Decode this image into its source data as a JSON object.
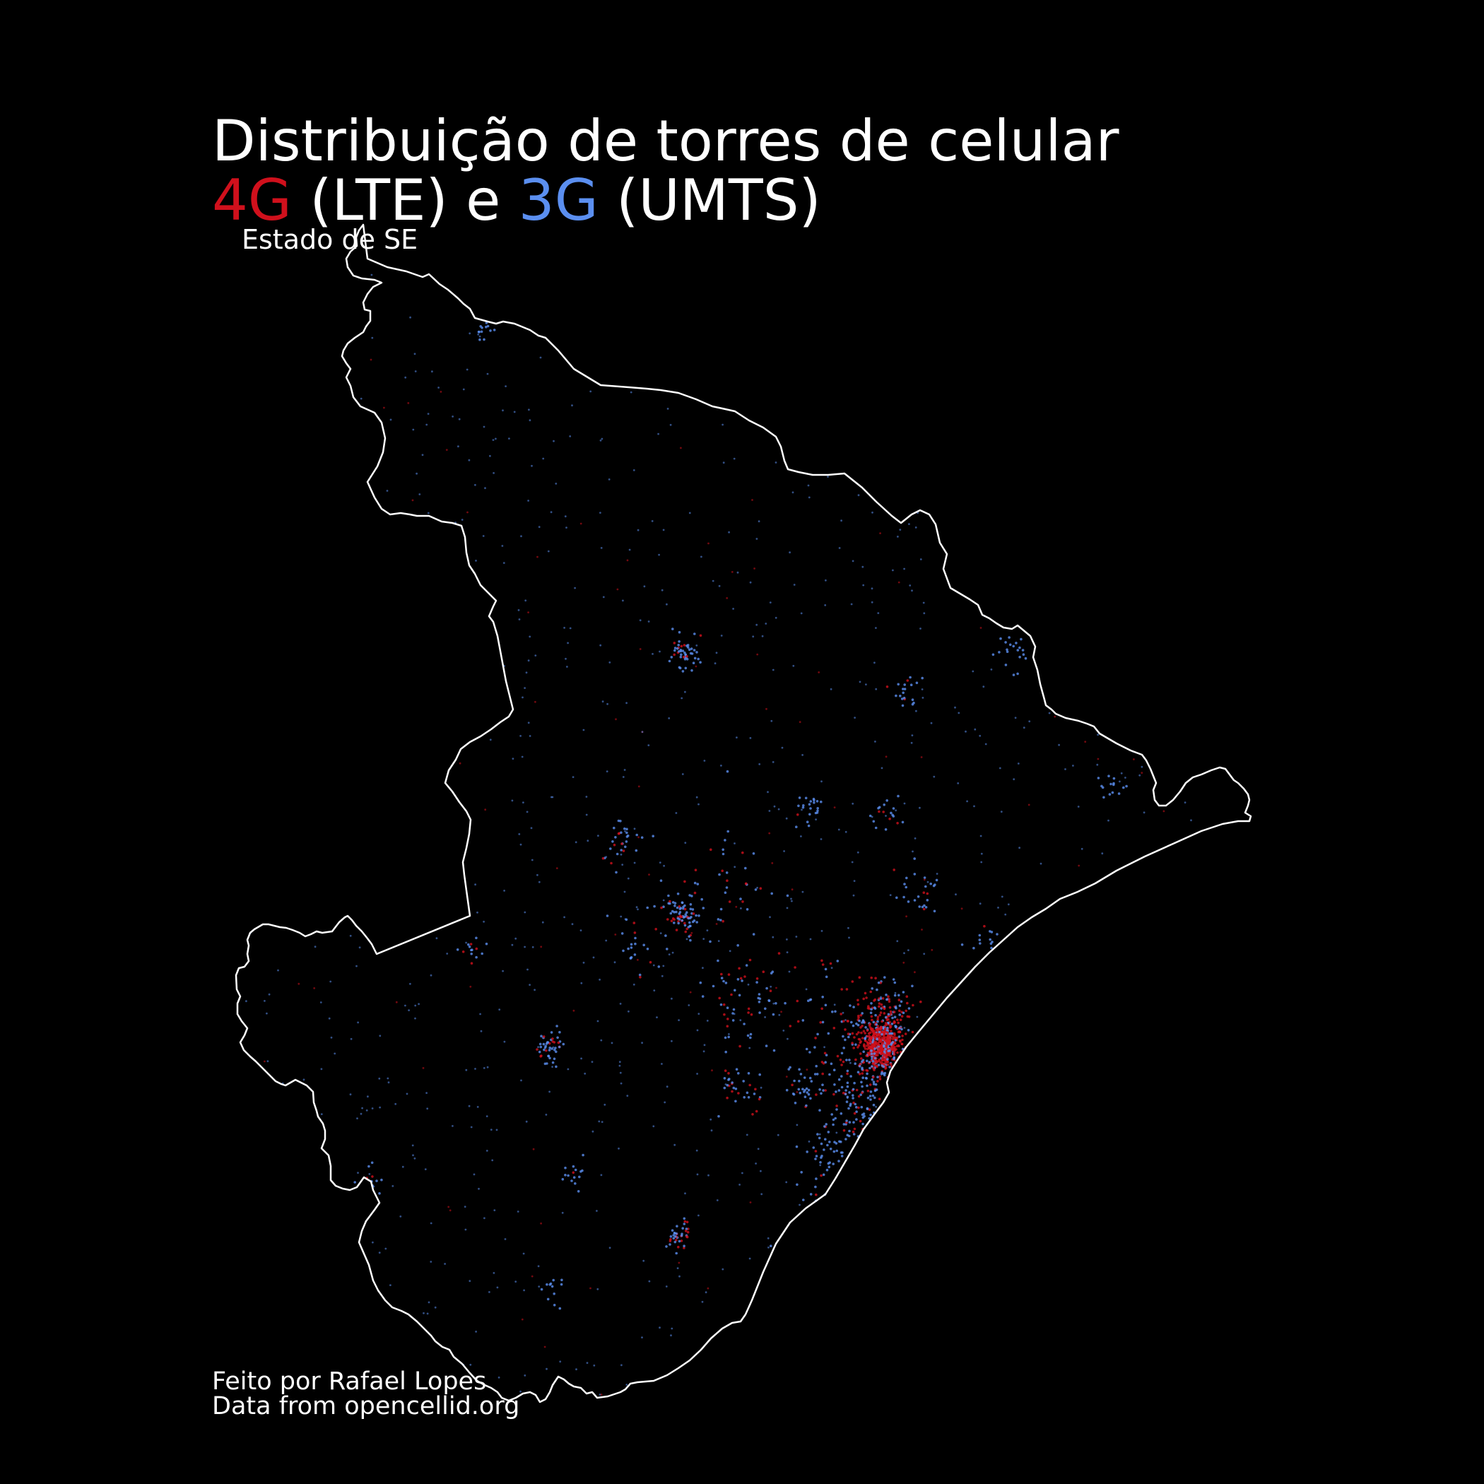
{
  "title": {
    "line1": "Distribuição de torres de celular",
    "line2": {
      "lte_label": "4G",
      "lte_suffix": " (LTE) e ",
      "umts_label": "3G",
      "umts_suffix": " (UMTS)"
    },
    "subtitle": "Estado de SE"
  },
  "colors": {
    "background": "#000000",
    "text": "#ffffff",
    "border": "#ffffff",
    "lte": "#d0101c",
    "umts": "#5b8ff0"
  },
  "legend": {
    "items": [
      {
        "label": "4G",
        "technology": "LTE",
        "color": "#d0101c"
      },
      {
        "label": "3G",
        "technology": "UMTS",
        "color": "#5b8ff0"
      }
    ]
  },
  "credits": {
    "author": "Feito por Rafael Lopes",
    "source": "Data from opencellid.org"
  }
}
